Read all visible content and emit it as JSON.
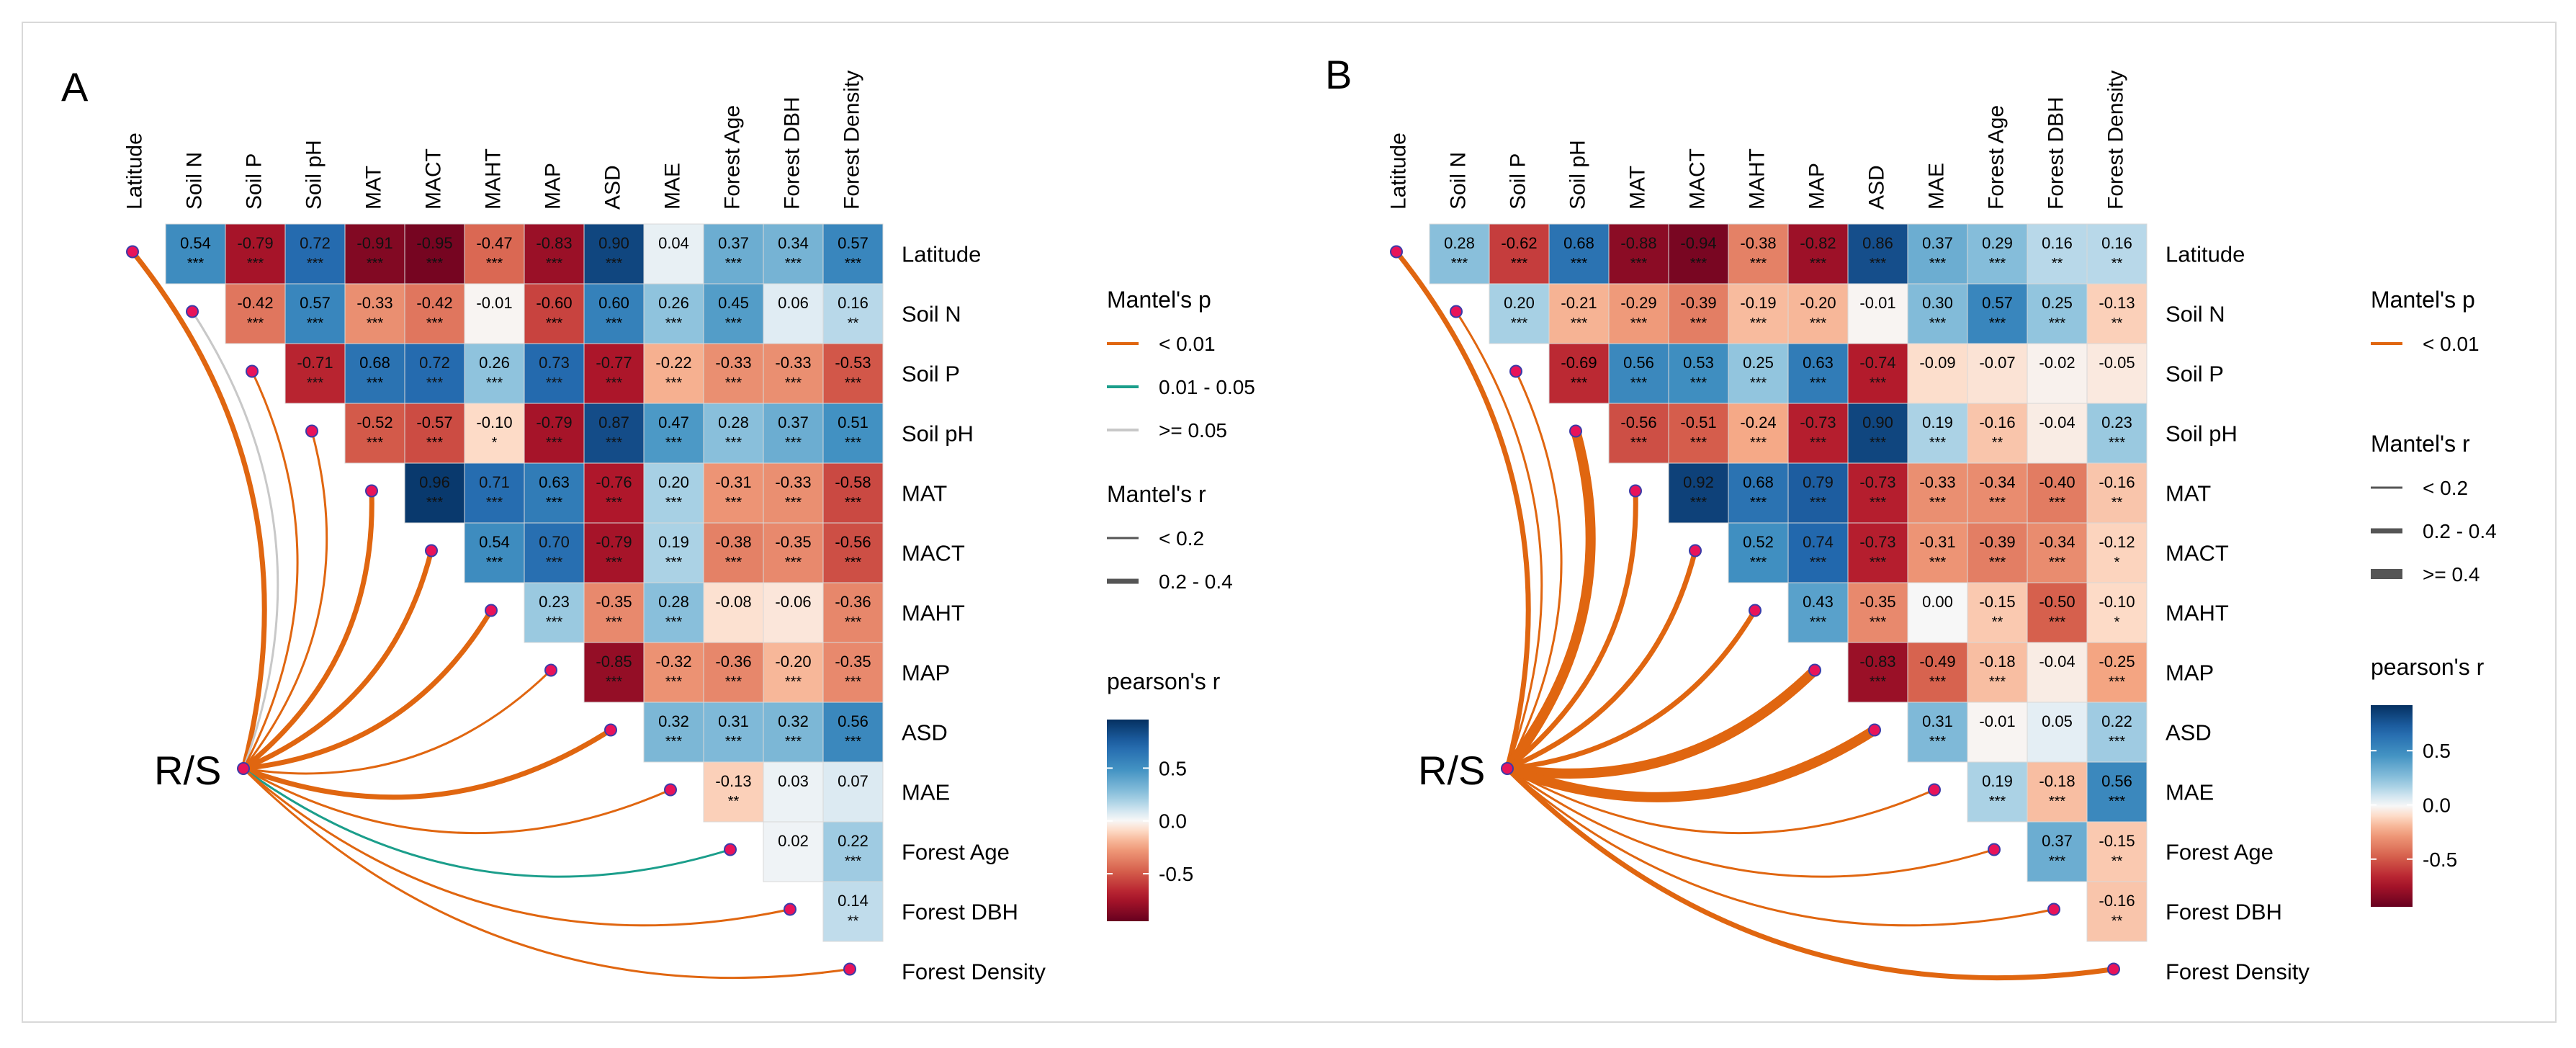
{
  "figure": {
    "variables": [
      "Latitude",
      "Soil N",
      "Soil P",
      "Soil pH",
      "MAT",
      "MACT",
      "MAHT",
      "MAP",
      "ASD",
      "MAE",
      "Forest  Age",
      "Forest  DBH",
      "Forest  Density"
    ],
    "response_label": "R/S",
    "colors": {
      "high": "#053061",
      "mid": "#f7f7f7",
      "low": "#67001f",
      "edge_sig_001": "#e06610",
      "edge_sig_005": "#1b9e8b",
      "edge_ns": "#c8c8c8",
      "node_fill": "#e8135a",
      "node_stroke": "#3a3aa8"
    }
  },
  "chart_data": [
    {
      "type": "heatmap",
      "panel_label": "A",
      "title": "",
      "matrix": [
        [
          [
            0.54,
            "***"
          ],
          [
            -0.79,
            "***"
          ],
          [
            0.72,
            "***"
          ],
          [
            -0.91,
            "***"
          ],
          [
            -0.95,
            "***"
          ],
          [
            -0.47,
            "***"
          ],
          [
            -0.83,
            "***"
          ],
          [
            0.9,
            "***"
          ],
          [
            0.04,
            ""
          ],
          [
            0.37,
            "***"
          ],
          [
            0.34,
            "***"
          ],
          [
            0.57,
            "***"
          ]
        ],
        [
          [
            -0.42,
            "***"
          ],
          [
            0.57,
            "***"
          ],
          [
            -0.33,
            "***"
          ],
          [
            -0.42,
            "***"
          ],
          [
            -0.01,
            ""
          ],
          [
            -0.6,
            "***"
          ],
          [
            0.6,
            "***"
          ],
          [
            0.26,
            "***"
          ],
          [
            0.45,
            "***"
          ],
          [
            0.06,
            ""
          ],
          [
            0.16,
            "**"
          ]
        ],
        [
          [
            -0.71,
            "***"
          ],
          [
            0.68,
            "***"
          ],
          [
            0.72,
            "***"
          ],
          [
            0.26,
            "***"
          ],
          [
            0.73,
            "***"
          ],
          [
            -0.77,
            "***"
          ],
          [
            -0.22,
            "***"
          ],
          [
            -0.33,
            "***"
          ],
          [
            -0.33,
            "***"
          ],
          [
            -0.53,
            "***"
          ]
        ],
        [
          [
            -0.52,
            "***"
          ],
          [
            -0.57,
            "***"
          ],
          [
            -0.1,
            "*"
          ],
          [
            -0.79,
            "***"
          ],
          [
            0.87,
            "***"
          ],
          [
            0.47,
            "***"
          ],
          [
            0.28,
            "***"
          ],
          [
            0.37,
            "***"
          ],
          [
            0.51,
            "***"
          ]
        ],
        [
          [
            0.96,
            "***"
          ],
          [
            0.71,
            "***"
          ],
          [
            0.63,
            "***"
          ],
          [
            -0.76,
            "***"
          ],
          [
            0.2,
            "***"
          ],
          [
            -0.31,
            "***"
          ],
          [
            -0.33,
            "***"
          ],
          [
            -0.58,
            "***"
          ]
        ],
        [
          [
            0.54,
            "***"
          ],
          [
            0.7,
            "***"
          ],
          [
            -0.79,
            "***"
          ],
          [
            0.19,
            "***"
          ],
          [
            -0.38,
            "***"
          ],
          [
            -0.35,
            "***"
          ],
          [
            -0.56,
            "***"
          ]
        ],
        [
          [
            0.23,
            "***"
          ],
          [
            -0.35,
            "***"
          ],
          [
            0.28,
            "***"
          ],
          [
            -0.08,
            ""
          ],
          [
            -0.06,
            ""
          ],
          [
            -0.36,
            "***"
          ]
        ],
        [
          [
            -0.85,
            "***"
          ],
          [
            -0.32,
            "***"
          ],
          [
            -0.36,
            "***"
          ],
          [
            -0.2,
            "***"
          ],
          [
            -0.35,
            "***"
          ]
        ],
        [
          [
            0.32,
            "***"
          ],
          [
            0.31,
            "***"
          ],
          [
            0.32,
            "***"
          ],
          [
            0.56,
            "***"
          ]
        ],
        [
          [
            -0.13,
            "**"
          ],
          [
            0.03,
            ""
          ],
          [
            0.07,
            ""
          ]
        ],
        [
          [
            0.02,
            ""
          ],
          [
            0.22,
            "***"
          ]
        ],
        [
          [
            0.14,
            "**"
          ]
        ]
      ],
      "mantel_links": [
        {
          "target": "Latitude",
          "p_class": "< 0.01",
          "r_class": "0.2 - 0.4"
        },
        {
          "target": "Soil N",
          "p_class": ">= 0.05",
          "r_class": "< 0.2"
        },
        {
          "target": "Soil P",
          "p_class": "< 0.01",
          "r_class": "< 0.2"
        },
        {
          "target": "Soil pH",
          "p_class": "< 0.01",
          "r_class": "< 0.2"
        },
        {
          "target": "MAT",
          "p_class": "< 0.01",
          "r_class": "0.2 - 0.4"
        },
        {
          "target": "MACT",
          "p_class": "< 0.01",
          "r_class": "0.2 - 0.4"
        },
        {
          "target": "MAHT",
          "p_class": "< 0.01",
          "r_class": "0.2 - 0.4"
        },
        {
          "target": "MAP",
          "p_class": "< 0.01",
          "r_class": "< 0.2"
        },
        {
          "target": "ASD",
          "p_class": "< 0.01",
          "r_class": "0.2 - 0.4"
        },
        {
          "target": "MAE",
          "p_class": "< 0.01",
          "r_class": "< 0.2"
        },
        {
          "target": "Forest  Age",
          "p_class": "0.01 - 0.05",
          "r_class": "< 0.2"
        },
        {
          "target": "Forest  DBH",
          "p_class": "< 0.01",
          "r_class": "< 0.2"
        },
        {
          "target": "Forest  Density",
          "p_class": "< 0.01",
          "r_class": "< 0.2"
        }
      ],
      "legend": {
        "p_title": "Mantel's p",
        "p_items": [
          "< 0.01",
          "0.01 - 0.05",
          ">= 0.05"
        ],
        "r_title": "Mantel's r",
        "r_items": [
          "< 0.2",
          "0.2 - 0.4"
        ],
        "color_title": "pearson's r",
        "color_ticks": [
          "0.5",
          "0.0",
          "-0.5"
        ],
        "color_range": [
          -0.95,
          0.96
        ]
      }
    },
    {
      "type": "heatmap",
      "panel_label": "B",
      "title": "",
      "matrix": [
        [
          [
            0.28,
            "***"
          ],
          [
            -0.62,
            "***"
          ],
          [
            0.68,
            "***"
          ],
          [
            -0.88,
            "***"
          ],
          [
            -0.94,
            "***"
          ],
          [
            -0.38,
            "***"
          ],
          [
            -0.82,
            "***"
          ],
          [
            0.86,
            "***"
          ],
          [
            0.37,
            "***"
          ],
          [
            0.29,
            "***"
          ],
          [
            0.16,
            "**"
          ],
          [
            0.16,
            "**"
          ]
        ],
        [
          [
            0.2,
            "***"
          ],
          [
            -0.21,
            "***"
          ],
          [
            -0.29,
            "***"
          ],
          [
            -0.39,
            "***"
          ],
          [
            -0.19,
            "***"
          ],
          [
            -0.2,
            "***"
          ],
          [
            -0.01,
            ""
          ],
          [
            0.3,
            "***"
          ],
          [
            0.57,
            "***"
          ],
          [
            0.25,
            "***"
          ],
          [
            -0.13,
            "**"
          ]
        ],
        [
          [
            -0.69,
            "***"
          ],
          [
            0.56,
            "***"
          ],
          [
            0.53,
            "***"
          ],
          [
            0.25,
            "***"
          ],
          [
            0.63,
            "***"
          ],
          [
            -0.74,
            "***"
          ],
          [
            -0.09,
            ""
          ],
          [
            -0.07,
            ""
          ],
          [
            -0.02,
            ""
          ],
          [
            -0.05,
            ""
          ]
        ],
        [
          [
            -0.56,
            "***"
          ],
          [
            -0.51,
            "***"
          ],
          [
            -0.24,
            "***"
          ],
          [
            -0.73,
            "***"
          ],
          [
            0.9,
            "***"
          ],
          [
            0.19,
            "***"
          ],
          [
            -0.16,
            "**"
          ],
          [
            -0.04,
            ""
          ],
          [
            0.23,
            "***"
          ]
        ],
        [
          [
            0.92,
            "***"
          ],
          [
            0.68,
            "***"
          ],
          [
            0.79,
            "***"
          ],
          [
            -0.73,
            "***"
          ],
          [
            -0.33,
            "***"
          ],
          [
            -0.34,
            "***"
          ],
          [
            -0.4,
            "***"
          ],
          [
            -0.16,
            "**"
          ]
        ],
        [
          [
            0.52,
            "***"
          ],
          [
            0.74,
            "***"
          ],
          [
            -0.73,
            "***"
          ],
          [
            -0.31,
            "***"
          ],
          [
            -0.39,
            "***"
          ],
          [
            -0.34,
            "***"
          ],
          [
            -0.12,
            "*"
          ]
        ],
        [
          [
            0.43,
            "***"
          ],
          [
            -0.35,
            "***"
          ],
          [
            0.0,
            ""
          ],
          [
            -0.15,
            "**"
          ],
          [
            -0.5,
            "***"
          ],
          [
            -0.1,
            "*"
          ]
        ],
        [
          [
            -0.83,
            "***"
          ],
          [
            -0.49,
            "***"
          ],
          [
            -0.18,
            "***"
          ],
          [
            -0.04,
            ""
          ],
          [
            -0.25,
            "***"
          ]
        ],
        [
          [
            0.31,
            "***"
          ],
          [
            -0.01,
            ""
          ],
          [
            0.05,
            ""
          ],
          [
            0.22,
            "***"
          ]
        ],
        [
          [
            0.19,
            "***"
          ],
          [
            -0.18,
            "***"
          ],
          [
            0.56,
            "***"
          ]
        ],
        [
          [
            0.37,
            "***"
          ],
          [
            -0.15,
            "**"
          ]
        ],
        [
          [
            -0.16,
            "**"
          ]
        ]
      ],
      "mantel_links": [
        {
          "target": "Latitude",
          "p_class": "< 0.01",
          "r_class": "0.2 - 0.4"
        },
        {
          "target": "Soil N",
          "p_class": "< 0.01",
          "r_class": "< 0.2"
        },
        {
          "target": "Soil P",
          "p_class": "< 0.01",
          "r_class": "< 0.2"
        },
        {
          "target": "Soil pH",
          "p_class": "< 0.01",
          "r_class": ">= 0.4"
        },
        {
          "target": "MAT",
          "p_class": "< 0.01",
          "r_class": "0.2 - 0.4"
        },
        {
          "target": "MACT",
          "p_class": "< 0.01",
          "r_class": "0.2 - 0.4"
        },
        {
          "target": "MAHT",
          "p_class": "< 0.01",
          "r_class": "0.2 - 0.4"
        },
        {
          "target": "MAP",
          "p_class": "< 0.01",
          "r_class": ">= 0.4"
        },
        {
          "target": "ASD",
          "p_class": "< 0.01",
          "r_class": ">= 0.4"
        },
        {
          "target": "MAE",
          "p_class": "< 0.01",
          "r_class": "< 0.2"
        },
        {
          "target": "Forest  Age",
          "p_class": "< 0.01",
          "r_class": "< 0.2"
        },
        {
          "target": "Forest  DBH",
          "p_class": "< 0.01",
          "r_class": "< 0.2"
        },
        {
          "target": "Forest  Density",
          "p_class": "< 0.01",
          "r_class": "0.2 - 0.4"
        }
      ],
      "legend": {
        "p_title": "Mantel's p",
        "p_items": [
          "< 0.01"
        ],
        "r_title": "Mantel's r",
        "r_items": [
          "< 0.2",
          "0.2 - 0.4",
          ">= 0.4"
        ],
        "color_title": "pearson's r",
        "color_ticks": [
          "0.5",
          "0.0",
          "-0.5"
        ],
        "color_range": [
          -0.94,
          0.92
        ]
      }
    }
  ]
}
